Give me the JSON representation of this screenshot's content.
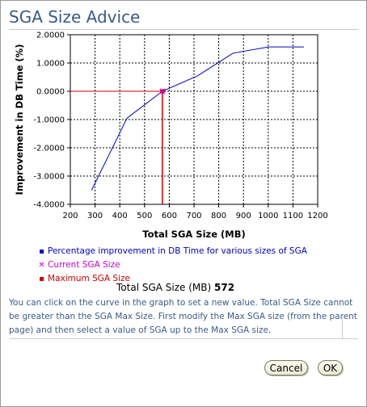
{
  "dialog": {
    "title": "SGA Size Advice",
    "total_label": "Total SGA Size (MB)",
    "total_value": "572",
    "help_text": "You can click on the curve in the graph to set a new value. Total SGA Size cannot be greater than the SGA Max Size. First modify the Max SGA size (from the parent page) and then select a value of SGA up to the Max SGA size.",
    "cancel_label": "Cancel",
    "ok_label": "OK"
  },
  "legend": [
    {
      "marker": "square",
      "label": "Percentage improvement in DB Time for various sizes of SGA",
      "color": "#0000cc"
    },
    {
      "marker": "x",
      "label": "Current SGA Size",
      "color": "#cc00cc"
    },
    {
      "marker": "square",
      "label": "Maximum SGA Size",
      "color": "#cc0000"
    }
  ],
  "colors": {
    "title": "#3a5a8a",
    "curve": "#0000cc",
    "current": "#cc00cc",
    "maximum": "#cc0000",
    "help_text": "#3a5a8a"
  },
  "chart_data": {
    "type": "line",
    "xlabel": "Total SGA Size (MB)",
    "ylabel": "Improvement in DB Time (%)",
    "xlim": [
      200,
      1200
    ],
    "ylim": [
      -4,
      2
    ],
    "x_ticks": [
      "200",
      "300",
      "400",
      "500",
      "600",
      "700",
      "800",
      "900",
      "1000",
      "1100",
      "1200"
    ],
    "y_ticks": [
      "2.0000",
      "1.0000",
      "0.0000",
      "-1.0000",
      "-2.0000",
      "-3.0000",
      "-4.0000"
    ],
    "grid": true,
    "series": [
      {
        "name": "Percentage improvement in DB Time for various sizes of SGA",
        "x": [
          286,
          429,
          572,
          715,
          858,
          1001,
          1144
        ],
        "y": [
          -3.5,
          -0.95,
          0.0,
          0.55,
          1.35,
          1.57,
          1.57
        ]
      }
    ],
    "current_sga_size": {
      "x": 572,
      "y": 0.0
    },
    "maximum_sga_size": {
      "x": 572,
      "y": 0.0
    }
  }
}
